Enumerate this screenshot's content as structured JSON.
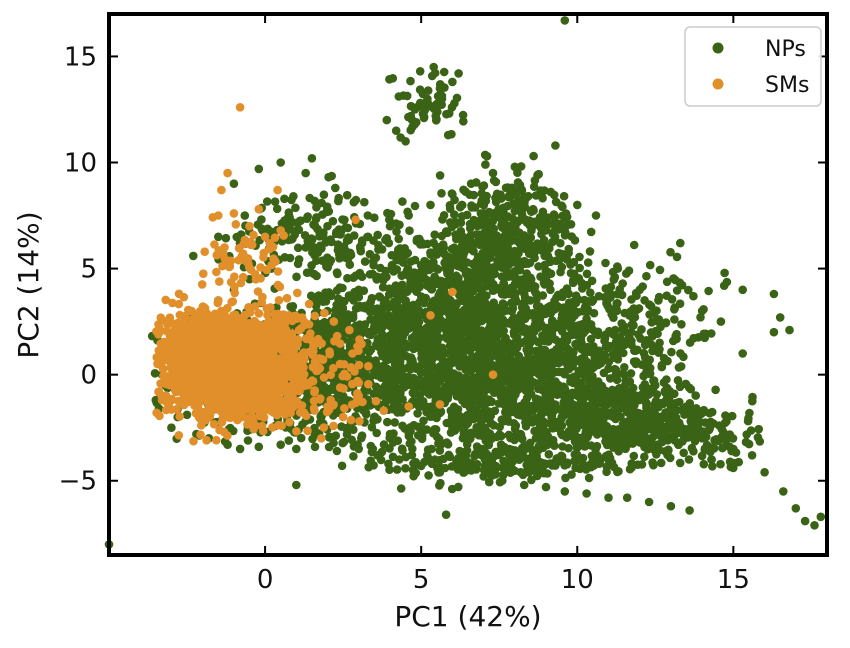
{
  "chart_data": {
    "type": "scatter",
    "xlabel": "PC1 (42%)",
    "ylabel": "PC2 (14%)",
    "xlim": [
      -5,
      18
    ],
    "ylim": [
      -8.5,
      17
    ],
    "x_ticks": [
      0,
      5,
      10,
      15
    ],
    "y_ticks": [
      -5,
      0,
      5,
      10,
      15
    ],
    "x_tick_labels": [
      "0",
      "5",
      "10",
      "15"
    ],
    "y_tick_labels": [
      "−5",
      "0",
      "5",
      "10",
      "15"
    ],
    "grid": false,
    "legend_position": "top-right",
    "series": [
      {
        "name": "NPs",
        "color": "#3a6316",
        "points": [
          [
            -3.5,
            -1.2
          ],
          [
            -3.2,
            -0.5
          ],
          [
            -3.0,
            0.5
          ],
          [
            -2.8,
            -2.0
          ],
          [
            -2.5,
            1.5
          ],
          [
            -2.2,
            -2.8
          ],
          [
            -2.0,
            2.5
          ],
          [
            -1.8,
            -3.0
          ],
          [
            -1.5,
            3.5
          ],
          [
            -1.2,
            -3.3
          ],
          [
            -1.0,
            4.0
          ],
          [
            -0.8,
            -3.5
          ],
          [
            -0.5,
            4.5
          ],
          [
            -0.2,
            -3.4
          ],
          [
            0.2,
            5.0
          ],
          [
            0.5,
            -3.3
          ],
          [
            0.8,
            5.5
          ],
          [
            1.0,
            -3.5
          ],
          [
            1.3,
            6.0
          ],
          [
            1.6,
            -3.4
          ],
          [
            2.0,
            7.0
          ],
          [
            2.3,
            -3.6
          ],
          [
            2.6,
            5.5
          ],
          [
            3.0,
            -3.5
          ],
          [
            3.3,
            6.5
          ],
          [
            3.6,
            -3.8
          ],
          [
            4.0,
            7.0
          ],
          [
            4.3,
            -4.0
          ],
          [
            4.6,
            7.5
          ],
          [
            5.0,
            -4.3
          ],
          [
            5.3,
            8.0
          ],
          [
            5.6,
            -4.6
          ],
          [
            6.0,
            8.5
          ],
          [
            6.3,
            -4.4
          ],
          [
            6.6,
            9.0
          ],
          [
            7.0,
            -4.8
          ],
          [
            7.3,
            9.5
          ],
          [
            7.6,
            -5.0
          ],
          [
            8.0,
            9.8
          ],
          [
            8.3,
            -5.2
          ],
          [
            8.6,
            10.3
          ],
          [
            9.0,
            -5.3
          ],
          [
            9.3,
            10.8
          ],
          [
            9.6,
            -5.5
          ],
          [
            10.0,
            8.0
          ],
          [
            10.3,
            -5.6
          ],
          [
            10.6,
            7.5
          ],
          [
            11.0,
            -5.8
          ],
          [
            11.3,
            5.0
          ],
          [
            11.6,
            -5.8
          ],
          [
            12.0,
            4.0
          ],
          [
            12.3,
            -6.0
          ],
          [
            12.6,
            3.5
          ],
          [
            13.0,
            -6.2
          ],
          [
            13.3,
            6.2
          ],
          [
            13.6,
            -6.4
          ],
          [
            14.0,
            3.0
          ],
          [
            14.3,
            -4.0
          ],
          [
            14.6,
            2.5
          ],
          [
            15.0,
            -4.4
          ],
          [
            15.3,
            1.0
          ],
          [
            15.6,
            -3.8
          ],
          [
            16.0,
            -4.6
          ],
          [
            16.3,
            2.0
          ],
          [
            16.6,
            -5.5
          ],
          [
            17.0,
            -6.3
          ],
          [
            17.3,
            -6.9
          ],
          [
            17.6,
            -7.1
          ],
          [
            17.8,
            -6.7
          ],
          [
            10.0,
            2.0
          ],
          [
            9.0,
            1.0
          ],
          [
            8.0,
            0.0
          ],
          [
            7.0,
            -1.0
          ],
          [
            6.0,
            3.0
          ],
          [
            5.0,
            2.0
          ],
          [
            4.0,
            1.0
          ],
          [
            3.0,
            0.0
          ],
          [
            11.0,
            -1.0
          ],
          [
            12.0,
            -2.0
          ],
          [
            13.0,
            -2.5
          ],
          [
            14.0,
            -3.0
          ],
          [
            15.0,
            -3.5
          ],
          [
            9.5,
            -2.0
          ],
          [
            8.5,
            3.5
          ],
          [
            7.5,
            5.5
          ],
          [
            6.5,
            6.0
          ],
          [
            5.5,
            5.0
          ],
          [
            4.5,
            3.5
          ],
          [
            3.5,
            -2.0
          ],
          [
            2.5,
            -1.0
          ],
          [
            10.5,
            0.5
          ],
          [
            11.5,
            1.5
          ],
          [
            12.5,
            -0.5
          ],
          [
            13.5,
            -1.5
          ],
          [
            6.0,
            -2.5
          ],
          [
            7.0,
            2.0
          ],
          [
            8.0,
            -3.0
          ],
          [
            9.0,
            4.5
          ],
          [
            4.0,
            -2.8
          ],
          [
            5.0,
            -1.5
          ],
          [
            4.8,
            12.5
          ],
          [
            5.2,
            13.0
          ],
          [
            5.6,
            13.5
          ],
          [
            6.0,
            13.8
          ],
          [
            5.4,
            14.5
          ],
          [
            4.2,
            11.5
          ],
          [
            3.9,
            12.0
          ],
          [
            4.5,
            11.0
          ],
          [
            6.2,
            14.2
          ],
          [
            9.6,
            16.7
          ],
          [
            0.5,
            10.0
          ],
          [
            1.5,
            10.2
          ],
          [
            1.3,
            9.5
          ],
          [
            -0.2,
            9.7
          ],
          [
            -1.0,
            9.0
          ],
          [
            -5.0,
            -8.0
          ],
          [
            1.0,
            -5.2
          ],
          [
            5.8,
            -6.6
          ],
          [
            -2.3,
            5.6
          ],
          [
            -1.5,
            6.5
          ],
          [
            -3.3,
            0.0
          ],
          [
            -3.4,
            -1.6
          ],
          [
            -3.0,
            -2.5
          ],
          [
            -2.7,
            2.0
          ],
          [
            2.0,
            3.0
          ],
          [
            3.0,
            4.0
          ],
          [
            2.5,
            2.0
          ],
          [
            1.8,
            -2.0
          ],
          [
            16.8,
            2.1
          ],
          [
            16.3,
            3.8
          ],
          [
            16.5,
            2.7
          ],
          [
            15.3,
            4.0
          ]
        ],
        "random_clusters": [
          {
            "cx": 0.5,
            "cy": 0.0,
            "sx": 1.6,
            "sy": 1.6,
            "n": 600,
            "xmin": -3.7,
            "xmax": 4.0,
            "ymin": -3.6,
            "ymax": 6.0
          },
          {
            "cx": 5.5,
            "cy": 1.5,
            "sx": 2.5,
            "sy": 2.8,
            "n": 2000,
            "xmin": 1.5,
            "xmax": 10.5,
            "ymin": -4.5,
            "ymax": 9.0
          },
          {
            "cx": 9.5,
            "cy": -0.8,
            "sx": 2.2,
            "sy": 2.0,
            "n": 900,
            "xmin": 6.0,
            "xmax": 14.0,
            "ymin": -4.6,
            "ymax": 4.5
          },
          {
            "cx": 12.8,
            "cy": -2.6,
            "sx": 1.8,
            "sy": 0.9,
            "n": 350,
            "xmin": 10.0,
            "xmax": 16.0,
            "ymin": -4.5,
            "ymax": -0.5
          },
          {
            "cx": 7.8,
            "cy": 6.5,
            "sx": 1.2,
            "sy": 1.4,
            "n": 350,
            "xmin": 5.5,
            "xmax": 10.0,
            "ymin": 3.5,
            "ymax": 10.5
          },
          {
            "cx": 5.2,
            "cy": 12.8,
            "sx": 0.6,
            "sy": 0.8,
            "n": 60,
            "xmin": 3.8,
            "xmax": 6.4,
            "ymin": 10.8,
            "ymax": 14.6
          },
          {
            "cx": 1.2,
            "cy": 6.8,
            "sx": 1.2,
            "sy": 1.0,
            "n": 140,
            "xmin": -1.5,
            "xmax": 3.5,
            "ymin": 4.5,
            "ymax": 9.5
          },
          {
            "cx": 11.5,
            "cy": 3.0,
            "sx": 1.5,
            "sy": 1.2,
            "n": 150,
            "xmin": 9.5,
            "xmax": 15.0,
            "ymin": 1.0,
            "ymax": 7.5
          },
          {
            "cx": 7.5,
            "cy": -4.2,
            "sx": 1.8,
            "sy": 0.5,
            "n": 150,
            "xmin": 4.0,
            "xmax": 12.0,
            "ymin": -5.5,
            "ymax": -3.2
          }
        ]
      },
      {
        "name": "SMs",
        "color": "#e08f2a",
        "points": [
          [
            -0.8,
            12.6
          ],
          [
            -1.2,
            9.5
          ],
          [
            -1.4,
            8.7
          ],
          [
            0.4,
            8.7
          ],
          [
            2.9,
            7.3
          ],
          [
            -1.5,
            7.5
          ],
          [
            -1.0,
            7.6
          ],
          [
            -0.5,
            7.0
          ],
          [
            0.0,
            6.5
          ],
          [
            0.5,
            6.8
          ],
          [
            -0.2,
            7.8
          ],
          [
            -1.3,
            6.0
          ],
          [
            -0.7,
            5.7
          ],
          [
            6.0,
            3.9
          ],
          [
            5.3,
            2.8
          ],
          [
            7.3,
            0.0
          ],
          [
            5.6,
            -1.4
          ],
          [
            4.6,
            -1.5
          ],
          [
            3.8,
            -1.7
          ],
          [
            3.0,
            -1.0
          ],
          [
            2.5,
            -2.0
          ],
          [
            2.0,
            -1.5
          ],
          [
            2.8,
            1.0
          ],
          [
            2.2,
            2.5
          ],
          [
            1.8,
            -3.0
          ],
          [
            1.9,
            2.9
          ],
          [
            2.7,
            2.1
          ],
          [
            2.4,
            0.5
          ],
          [
            1.6,
            0.6
          ],
          [
            -1.5,
            3.5
          ]
        ],
        "random_clusters": [
          {
            "cx": -1.0,
            "cy": 0.5,
            "sx": 1.2,
            "sy": 1.3,
            "n": 1800,
            "xmin": -3.5,
            "xmax": 1.8,
            "ymin": -3.2,
            "ymax": 4.7
          },
          {
            "cx": -0.7,
            "cy": 5.2,
            "sx": 0.8,
            "sy": 0.7,
            "n": 60,
            "xmin": -2.0,
            "xmax": 0.8,
            "ymin": 4.2,
            "ymax": 7.8
          },
          {
            "cx": 2.4,
            "cy": -0.5,
            "sx": 0.6,
            "sy": 1.4,
            "n": 60,
            "xmin": 1.5,
            "xmax": 4.0,
            "ymin": -2.5,
            "ymax": 2.5
          }
        ]
      }
    ]
  }
}
